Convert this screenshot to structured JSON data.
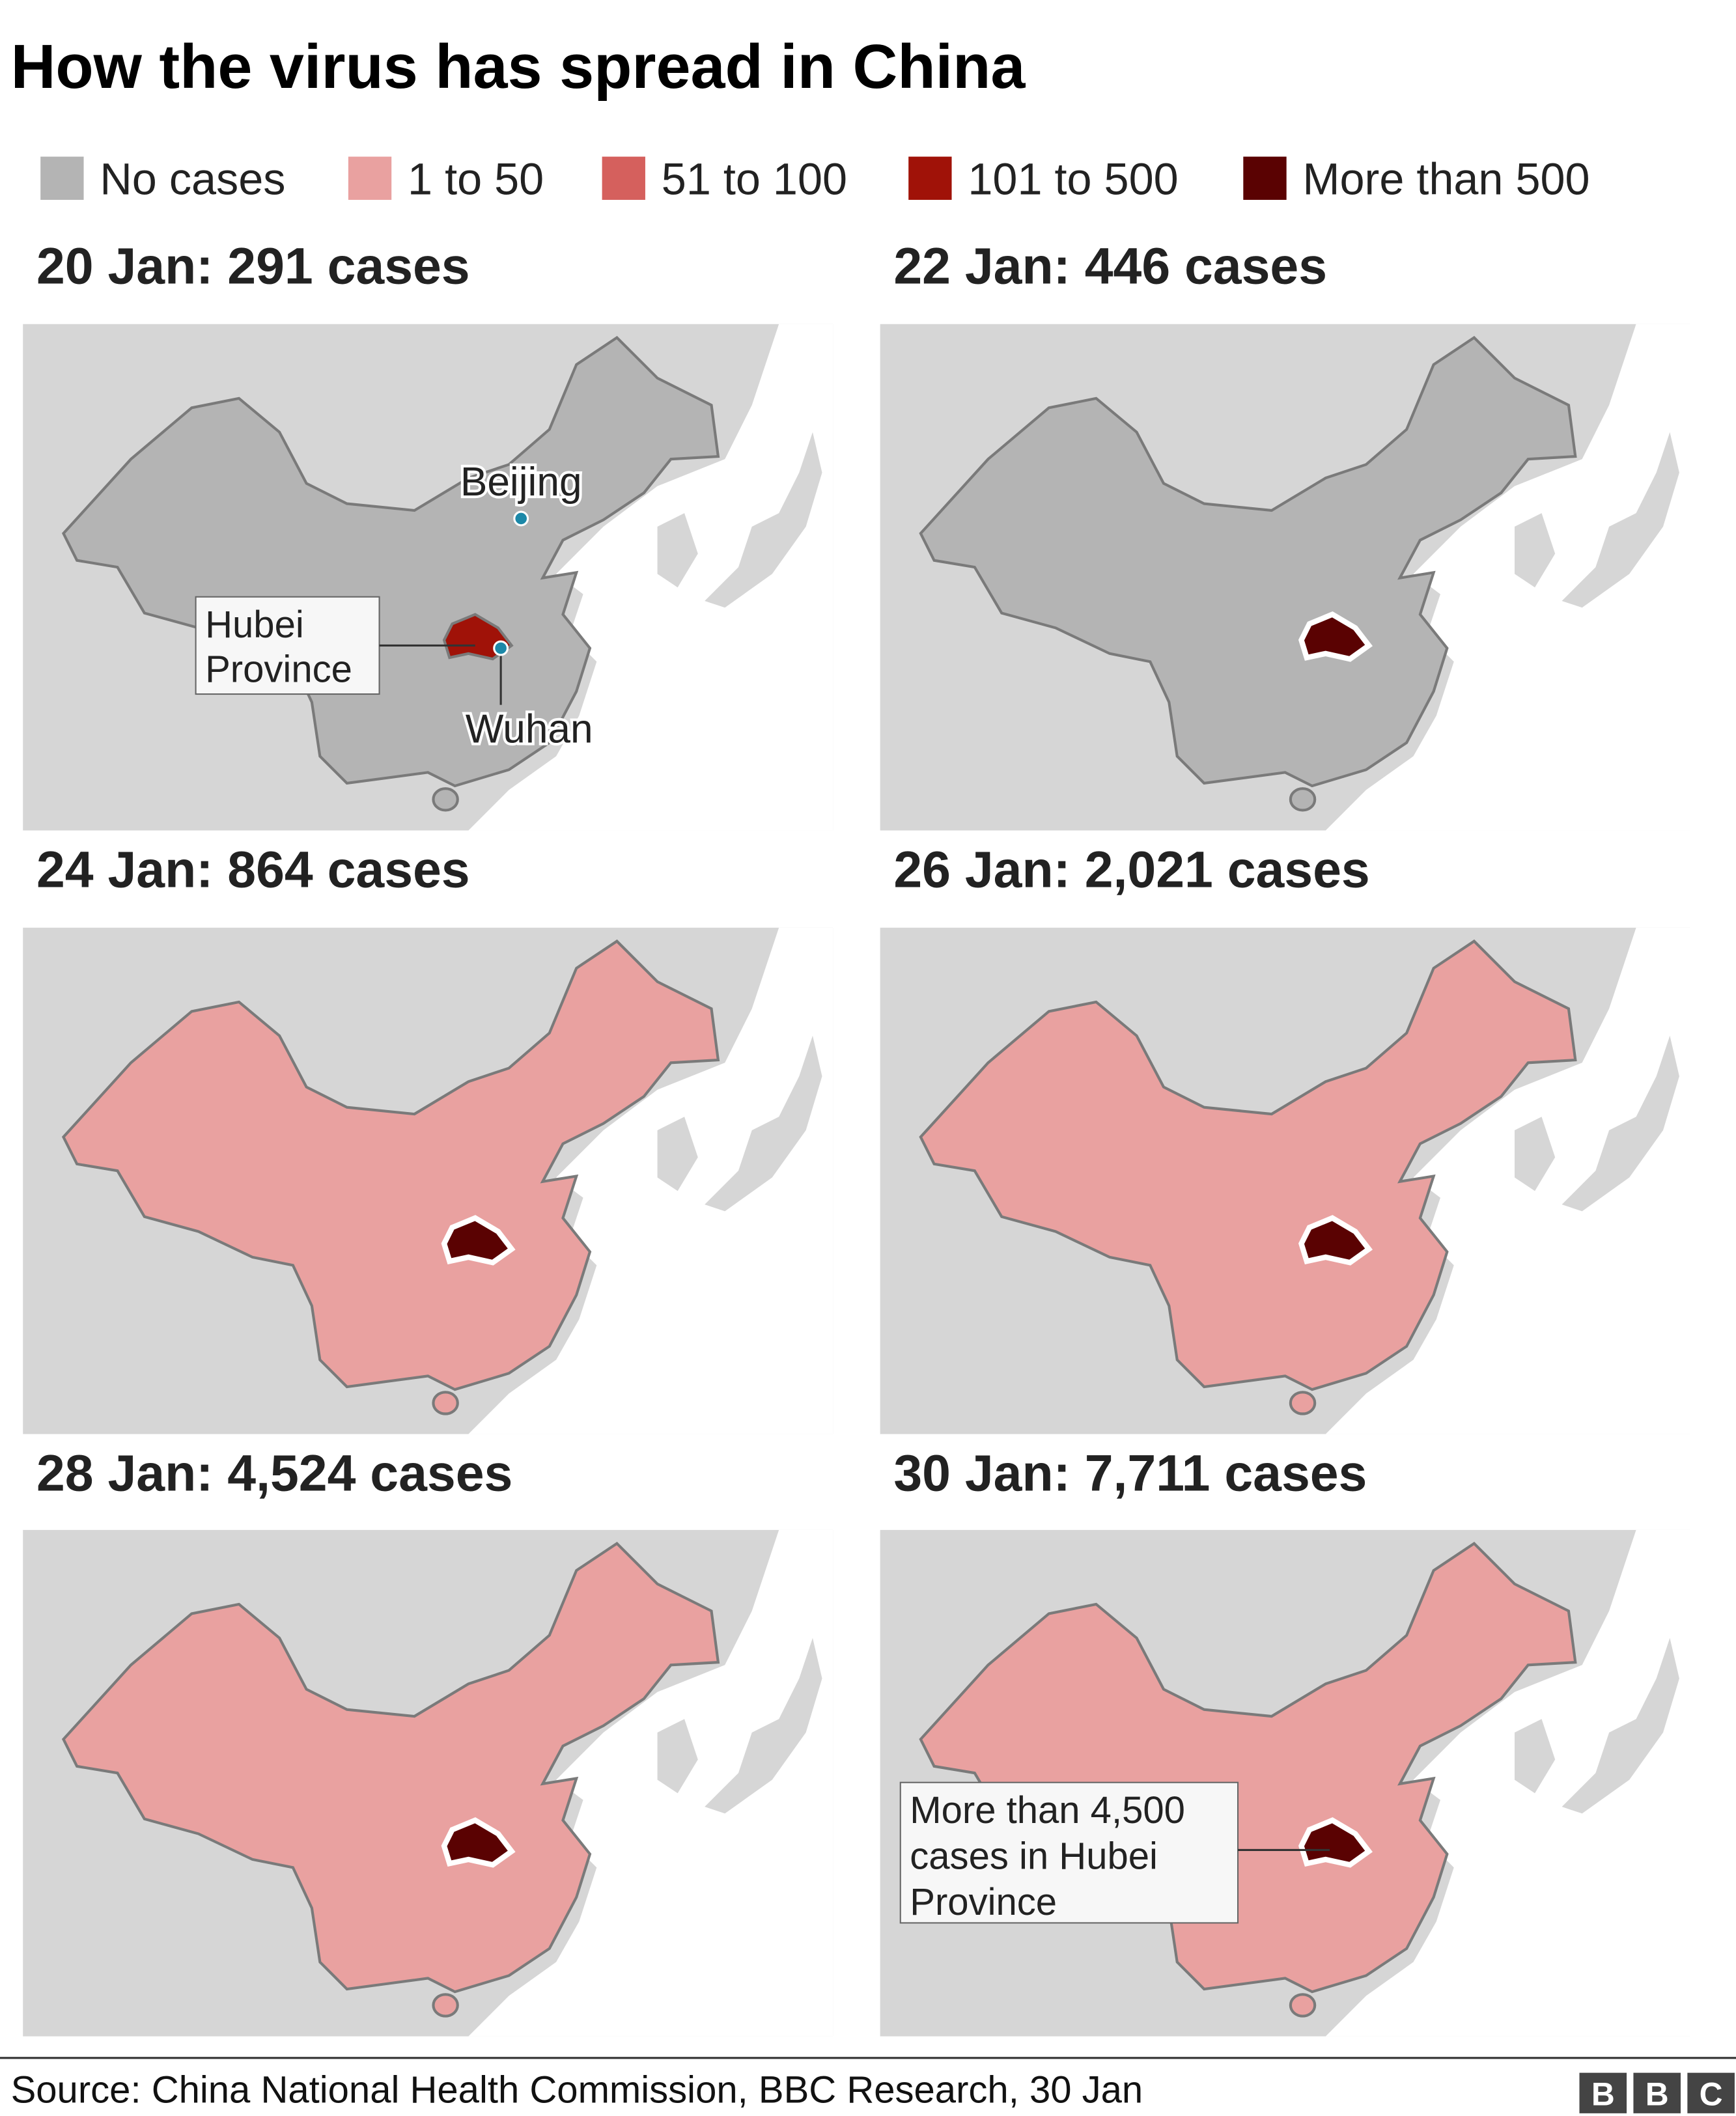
{
  "title": "How the virus has spread in China",
  "legend": {
    "items": [
      {
        "label": "No cases",
        "color": "#b4b4b4"
      },
      {
        "label": "1 to 50",
        "color": "#e9a1a0"
      },
      {
        "label": "51 to 100",
        "color": "#d5605d"
      },
      {
        "label": "101 to 500",
        "color": "#a01208"
      },
      {
        "label": "More than 500",
        "color": "#5a0202"
      }
    ]
  },
  "panels": [
    {
      "title": "20 Jan: 291 cases",
      "land_color": "#b4b4b4",
      "hubei_color": "#a01208"
    },
    {
      "title": "22 Jan: 446 cases",
      "land_color": "#b4b4b4",
      "hubei_color": "#5a0202"
    },
    {
      "title": "24 Jan: 864 cases",
      "land_color": "#e9a1a0",
      "hubei_color": "#5a0202"
    },
    {
      "title": "26 Jan: 2,021 cases",
      "land_color": "#e9a1a0",
      "hubei_color": "#5a0202"
    },
    {
      "title": "28 Jan: 4,524 cases",
      "land_color": "#e9a1a0",
      "hubei_color": "#5a0202"
    },
    {
      "title": "30 Jan: 7,711 cases",
      "land_color": "#e9a1a0",
      "hubei_color": "#5a0202"
    }
  ],
  "annotations": {
    "beijing": "Beijing",
    "hubei": [
      "Hubei",
      "Province"
    ],
    "wuhan": "Wuhan",
    "hubei_cases": [
      "More than 4,500",
      "cases in Hubei",
      "Province"
    ]
  },
  "source": "Source: China National Health Commission, BBC Research, 30 Jan",
  "logo": [
    "B",
    "B",
    "C"
  ]
}
